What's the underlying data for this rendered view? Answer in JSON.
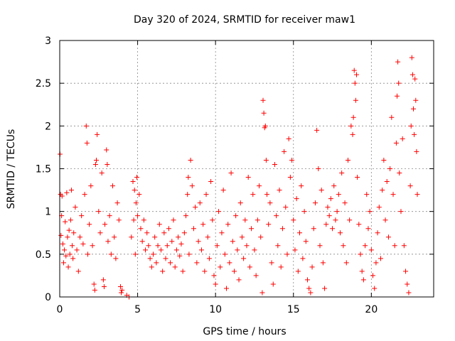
{
  "chart_data": {
    "type": "scatter",
    "title": "Day 320 of 2024, SRMTID for receiver maw1",
    "xlabel": "GPS time / hours",
    "ylabel": "SRMTID / TECUs",
    "xlim": [
      0,
      24
    ],
    "ylim": [
      0,
      3
    ],
    "xticks": [
      0,
      5,
      10,
      15,
      20
    ],
    "yticks": [
      0,
      0.5,
      1,
      1.5,
      2,
      2.5,
      3
    ],
    "xtick_labels": [
      "0",
      "5",
      "10",
      "15",
      "20"
    ],
    "ytick_labels": [
      "0",
      "0.5",
      "1",
      "1.5",
      "2",
      "2.5",
      "3"
    ],
    "grid": true,
    "marker": "+",
    "color": "#ff0000",
    "series": [
      {
        "name": "SRMTID",
        "points": [
          [
            0.02,
            1.67
          ],
          [
            0.05,
            1.2
          ],
          [
            0.08,
            0.72
          ],
          [
            0.12,
            0.95
          ],
          [
            0.15,
            1.18
          ],
          [
            0.2,
            0.62
          ],
          [
            0.25,
            0.4
          ],
          [
            0.3,
            0.55
          ],
          [
            0.35,
            0.88
          ],
          [
            0.4,
            0.48
          ],
          [
            0.45,
            1.22
          ],
          [
            0.5,
            0.7
          ],
          [
            0.55,
            0.35
          ],
          [
            0.6,
            0.78
          ],
          [
            0.65,
            0.5
          ],
          [
            0.7,
            0.9
          ],
          [
            0.75,
            1.25
          ],
          [
            0.8,
            0.6
          ],
          [
            0.85,
            0.45
          ],
          [
            0.9,
            0.75
          ],
          [
            1.0,
            1.05
          ],
          [
            1.1,
            0.55
          ],
          [
            1.2,
            0.3
          ],
          [
            1.3,
            0.7
          ],
          [
            1.4,
            0.95
          ],
          [
            1.5,
            0.62
          ],
          [
            1.6,
            1.2
          ],
          [
            1.7,
            2.0
          ],
          [
            1.75,
            1.8
          ],
          [
            1.8,
            0.5
          ],
          [
            1.9,
            0.85
          ],
          [
            2.0,
            1.3
          ],
          [
            2.1,
            0.6
          ],
          [
            2.2,
            0.15
          ],
          [
            2.25,
            0.08
          ],
          [
            2.3,
            1.55
          ],
          [
            2.35,
            1.6
          ],
          [
            2.4,
            1.9
          ],
          [
            2.5,
            1.0
          ],
          [
            2.6,
            0.75
          ],
          [
            2.7,
            1.45
          ],
          [
            2.8,
            0.2
          ],
          [
            2.85,
            0.12
          ],
          [
            2.9,
            0.85
          ],
          [
            3.0,
            1.72
          ],
          [
            3.05,
            1.55
          ],
          [
            3.1,
            0.65
          ],
          [
            3.2,
            0.95
          ],
          [
            3.3,
            0.5
          ],
          [
            3.4,
            1.3
          ],
          [
            3.5,
            0.7
          ],
          [
            3.6,
            0.45
          ],
          [
            3.7,
            1.1
          ],
          [
            3.8,
            0.9
          ],
          [
            3.9,
            0.12
          ],
          [
            3.95,
            0.05
          ],
          [
            4.0,
            0.08
          ],
          [
            4.3,
            0.02
          ],
          [
            4.45,
            0.0
          ],
          [
            4.6,
            0.7
          ],
          [
            4.7,
            1.35
          ],
          [
            4.75,
            0.9
          ],
          [
            4.8,
            1.25
          ],
          [
            4.85,
            0.5
          ],
          [
            4.9,
            1.1
          ],
          [
            4.95,
            1.4
          ],
          [
            5.0,
            0.95
          ],
          [
            5.1,
            1.2
          ],
          [
            5.2,
            0.8
          ],
          [
            5.3,
            0.65
          ],
          [
            5.4,
            0.9
          ],
          [
            5.5,
            0.55
          ],
          [
            5.6,
            0.75
          ],
          [
            5.7,
            0.6
          ],
          [
            5.8,
            0.45
          ],
          [
            5.9,
            0.35
          ],
          [
            6.0,
            0.5
          ],
          [
            6.1,
            0.7
          ],
          [
            6.2,
            0.4
          ],
          [
            6.3,
            0.6
          ],
          [
            6.4,
            0.85
          ],
          [
            6.5,
            0.55
          ],
          [
            6.6,
            0.3
          ],
          [
            6.7,
            0.75
          ],
          [
            6.8,
            0.45
          ],
          [
            6.9,
            0.6
          ],
          [
            7.0,
            0.8
          ],
          [
            7.1,
            0.4
          ],
          [
            7.2,
            0.65
          ],
          [
            7.3,
            0.9
          ],
          [
            7.4,
            0.35
          ],
          [
            7.5,
            0.55
          ],
          [
            7.6,
            0.7
          ],
          [
            7.7,
            0.48
          ],
          [
            7.8,
            0.62
          ],
          [
            7.9,
            0.3
          ],
          [
            8.0,
            0.75
          ],
          [
            8.1,
            0.95
          ],
          [
            8.2,
            1.2
          ],
          [
            8.25,
            1.4
          ],
          [
            8.3,
            0.5
          ],
          [
            8.4,
            1.6
          ],
          [
            8.5,
            1.3
          ],
          [
            8.6,
            0.8
          ],
          [
            8.7,
            1.05
          ],
          [
            8.8,
            0.4
          ],
          [
            8.9,
            0.65
          ],
          [
            9.0,
            1.1
          ],
          [
            9.1,
            0.55
          ],
          [
            9.2,
            0.85
          ],
          [
            9.3,
            0.3
          ],
          [
            9.4,
            1.2
          ],
          [
            9.5,
            0.7
          ],
          [
            9.6,
            0.45
          ],
          [
            9.7,
            1.35
          ],
          [
            9.8,
            0.9
          ],
          [
            9.9,
            0.25
          ],
          [
            10.0,
            0.15
          ],
          [
            10.1,
            0.6
          ],
          [
            10.2,
            1.0
          ],
          [
            10.3,
            0.35
          ],
          [
            10.4,
            0.75
          ],
          [
            10.5,
            1.25
          ],
          [
            10.6,
            0.5
          ],
          [
            10.7,
            0.1
          ],
          [
            10.8,
            0.85
          ],
          [
            10.9,
            0.4
          ],
          [
            11.0,
            1.45
          ],
          [
            11.1,
            0.65
          ],
          [
            11.2,
            0.3
          ],
          [
            11.3,
            0.95
          ],
          [
            11.4,
            0.55
          ],
          [
            11.5,
            0.2
          ],
          [
            11.6,
            1.1
          ],
          [
            11.7,
            0.7
          ],
          [
            11.8,
            0.45
          ],
          [
            11.9,
            0.9
          ],
          [
            12.0,
            0.6
          ],
          [
            12.1,
            1.4
          ],
          [
            12.2,
            0.35
          ],
          [
            12.3,
            0.8
          ],
          [
            12.4,
            1.2
          ],
          [
            12.5,
            0.55
          ],
          [
            12.6,
            0.25
          ],
          [
            12.7,
            0.9
          ],
          [
            12.8,
            1.3
          ],
          [
            12.9,
            0.7
          ],
          [
            13.0,
            0.05
          ],
          [
            13.05,
            2.3
          ],
          [
            13.1,
            2.15
          ],
          [
            13.15,
            1.98
          ],
          [
            13.2,
            2.0
          ],
          [
            13.25,
            1.6
          ],
          [
            13.3,
            1.2
          ],
          [
            13.4,
            0.85
          ],
          [
            13.5,
            1.1
          ],
          [
            13.6,
            0.4
          ],
          [
            13.7,
            0.15
          ],
          [
            13.8,
            1.55
          ],
          [
            13.9,
            0.95
          ],
          [
            14.0,
            0.6
          ],
          [
            14.1,
            1.25
          ],
          [
            14.2,
            0.35
          ],
          [
            14.3,
            0.8
          ],
          [
            14.4,
            1.7
          ],
          [
            14.5,
            1.05
          ],
          [
            14.6,
            0.5
          ],
          [
            14.7,
            1.85
          ],
          [
            14.8,
            1.4
          ],
          [
            14.9,
            1.6
          ],
          [
            15.0,
            0.9
          ],
          [
            15.1,
            0.55
          ],
          [
            15.2,
            1.15
          ],
          [
            15.3,
            0.3
          ],
          [
            15.4,
            0.75
          ],
          [
            15.5,
            1.3
          ],
          [
            15.6,
            0.45
          ],
          [
            15.7,
            1.0
          ],
          [
            15.8,
            0.65
          ],
          [
            15.9,
            0.2
          ],
          [
            16.0,
            0.1
          ],
          [
            16.1,
            0.05
          ],
          [
            16.2,
            0.35
          ],
          [
            16.3,
            0.8
          ],
          [
            16.4,
            1.1
          ],
          [
            16.5,
            1.95
          ],
          [
            16.6,
            1.5
          ],
          [
            16.7,
            0.6
          ],
          [
            16.8,
            1.25
          ],
          [
            16.9,
            0.4
          ],
          [
            17.0,
            0.1
          ],
          [
            17.1,
            0.85
          ],
          [
            17.2,
            1.05
          ],
          [
            17.3,
            0.95
          ],
          [
            17.4,
            1.15
          ],
          [
            17.5,
            0.8
          ],
          [
            17.6,
            1.3
          ],
          [
            17.7,
            0.9
          ],
          [
            17.8,
            1.0
          ],
          [
            17.9,
            1.2
          ],
          [
            18.0,
            0.75
          ],
          [
            18.1,
            1.45
          ],
          [
            18.2,
            0.6
          ],
          [
            18.3,
            1.1
          ],
          [
            18.4,
            0.4
          ],
          [
            18.5,
            1.6
          ],
          [
            18.6,
            0.9
          ],
          [
            18.7,
            2.0
          ],
          [
            18.8,
            1.9
          ],
          [
            18.85,
            2.1
          ],
          [
            18.9,
            2.65
          ],
          [
            18.95,
            2.5
          ],
          [
            19.0,
            2.3
          ],
          [
            19.05,
            2.6
          ],
          [
            19.1,
            1.4
          ],
          [
            19.2,
            0.85
          ],
          [
            19.3,
            0.5
          ],
          [
            19.4,
            0.3
          ],
          [
            19.5,
            0.2
          ],
          [
            19.6,
            0.6
          ],
          [
            19.7,
            1.2
          ],
          [
            19.8,
            0.8
          ],
          [
            19.9,
            1.0
          ],
          [
            20.0,
            0.55
          ],
          [
            20.1,
            0.25
          ],
          [
            20.2,
            0.1
          ],
          [
            20.3,
            0.4
          ],
          [
            20.4,
            0.75
          ],
          [
            20.5,
            1.05
          ],
          [
            20.6,
            0.45
          ],
          [
            20.7,
            1.25
          ],
          [
            20.8,
            1.6
          ],
          [
            20.9,
            0.9
          ],
          [
            21.0,
            1.35
          ],
          [
            21.1,
            0.7
          ],
          [
            21.2,
            1.5
          ],
          [
            21.3,
            2.1
          ],
          [
            21.4,
            1.2
          ],
          [
            21.5,
            0.6
          ],
          [
            21.6,
            1.8
          ],
          [
            21.65,
            2.35
          ],
          [
            21.7,
            2.75
          ],
          [
            21.75,
            2.5
          ],
          [
            21.8,
            1.45
          ],
          [
            21.9,
            1.0
          ],
          [
            22.0,
            1.85
          ],
          [
            22.1,
            0.6
          ],
          [
            22.2,
            0.3
          ],
          [
            22.3,
            0.15
          ],
          [
            22.4,
            0.05
          ],
          [
            22.5,
            1.3
          ],
          [
            22.55,
            2.0
          ],
          [
            22.6,
            2.8
          ],
          [
            22.65,
            2.6
          ],
          [
            22.7,
            2.2
          ],
          [
            22.75,
            1.9
          ],
          [
            22.8,
            2.55
          ],
          [
            22.85,
            2.3
          ],
          [
            22.9,
            1.7
          ],
          [
            22.95,
            1.2
          ]
        ]
      }
    ]
  }
}
